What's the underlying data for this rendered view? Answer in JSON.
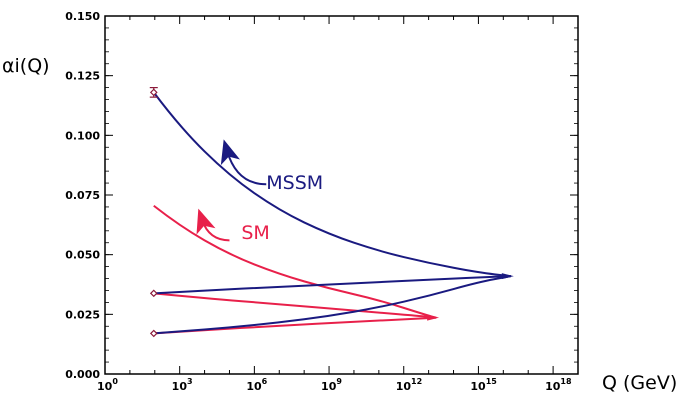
{
  "chart_data": {
    "type": "line",
    "xlabel": "Q (GeV)",
    "ylabel": "αi(Q)",
    "x_scale": "log10",
    "xlim": [
      1,
      1e+19
    ],
    "ylim": [
      0,
      0.15
    ],
    "grid": false,
    "x_ticks": [
      {
        "value": 1,
        "base": "10",
        "exp": "0"
      },
      {
        "value": 1000,
        "base": "10",
        "exp": "3"
      },
      {
        "value": 1000000,
        "base": "10",
        "exp": "6"
      },
      {
        "value": 1000000000,
        "base": "10",
        "exp": "9"
      },
      {
        "value": 1000000000000,
        "base": "10",
        "exp": "12"
      },
      {
        "value": 1000000000000000,
        "base": "10",
        "exp": "15"
      },
      {
        "value": 1000000000000000000,
        "base": "10",
        "exp": "18"
      }
    ],
    "y_ticks": [
      "0.000",
      "0.025",
      "0.050",
      "0.075",
      "0.100",
      "0.125",
      "0.150"
    ],
    "colors": {
      "MSSM": "#1a1a80",
      "SM": "#e8204a",
      "marker": "#8b1a3a"
    },
    "series": [
      {
        "name": "MSSM",
        "color": "#1a1a80",
        "curves": [
          {
            "x": [
              91,
              1000.0,
              100000.0,
              10000000.0,
              1000000000.0,
              100000000000.0,
              10000000000000.0,
              1000000000000000.0,
              2e+16
            ],
            "y": [
              0.118,
              0.1035,
              0.083,
              0.0685,
              0.0585,
              0.0515,
              0.0465,
              0.0425,
              0.041
            ]
          },
          {
            "x": [
              91,
              10000.0,
              10000000.0,
              10000000000.0,
              10000000000000.0,
              1e+16,
              2e+16
            ],
            "y": [
              0.0338,
              0.035,
              0.0365,
              0.038,
              0.0395,
              0.0409,
              0.041
            ]
          },
          {
            "x": [
              91,
              1000.0,
              100000.0,
              10000000.0,
              1000000000.0,
              100000000000.0,
              10000000000000.0,
              1000000000000000.0,
              2e+16
            ],
            "y": [
              0.017,
              0.0178,
              0.0195,
              0.0216,
              0.0243,
              0.0279,
              0.0327,
              0.0385,
              0.041
            ]
          }
        ]
      },
      {
        "name": "SM",
        "color": "#e8204a",
        "curves": [
          {
            "x": [
              91,
              1000.0,
              100000.0,
              10000000.0,
              1000000000.0,
              100000000000.0,
              10000000000000.0,
              20000000000000.0
            ],
            "y": [
              0.0705,
              0.062,
              0.05,
              0.0418,
              0.0358,
              0.031,
              0.0244,
              0.0236
            ]
          },
          {
            "x": [
              91,
              10000.0,
              10000000.0,
              10000000000.0,
              10000000000000.0,
              20000000000000.0
            ],
            "y": [
              0.0338,
              0.0318,
              0.0292,
              0.0266,
              0.024,
              0.0236
            ]
          },
          {
            "x": [
              91,
              10000.0,
              10000000.0,
              10000000000.0,
              10000000000000.0,
              20000000000000.0
            ],
            "y": [
              0.017,
              0.0184,
              0.0202,
              0.0219,
              0.0234,
              0.0236
            ]
          }
        ]
      }
    ],
    "markers": [
      {
        "x": 91,
        "y": 0.118,
        "error": 0.002
      },
      {
        "x": 91,
        "y": 0.0338
      },
      {
        "x": 91,
        "y": 0.017
      }
    ],
    "annotations": [
      {
        "text": "MSSM",
        "x": 3000000.0,
        "y": 0.0775,
        "color": "#1a1a80",
        "arrow": {
          "from": [
            3000000.0,
            0.0795
          ],
          "to": [
            80000.0,
            0.0935
          ]
        }
      },
      {
        "text": "SM",
        "x": 300000.0,
        "y": 0.0565,
        "color": "#e8204a",
        "arrow": {
          "from": [
            100000.0,
            0.056
          ],
          "to": [
            8000.0,
            0.0645
          ]
        }
      }
    ]
  }
}
